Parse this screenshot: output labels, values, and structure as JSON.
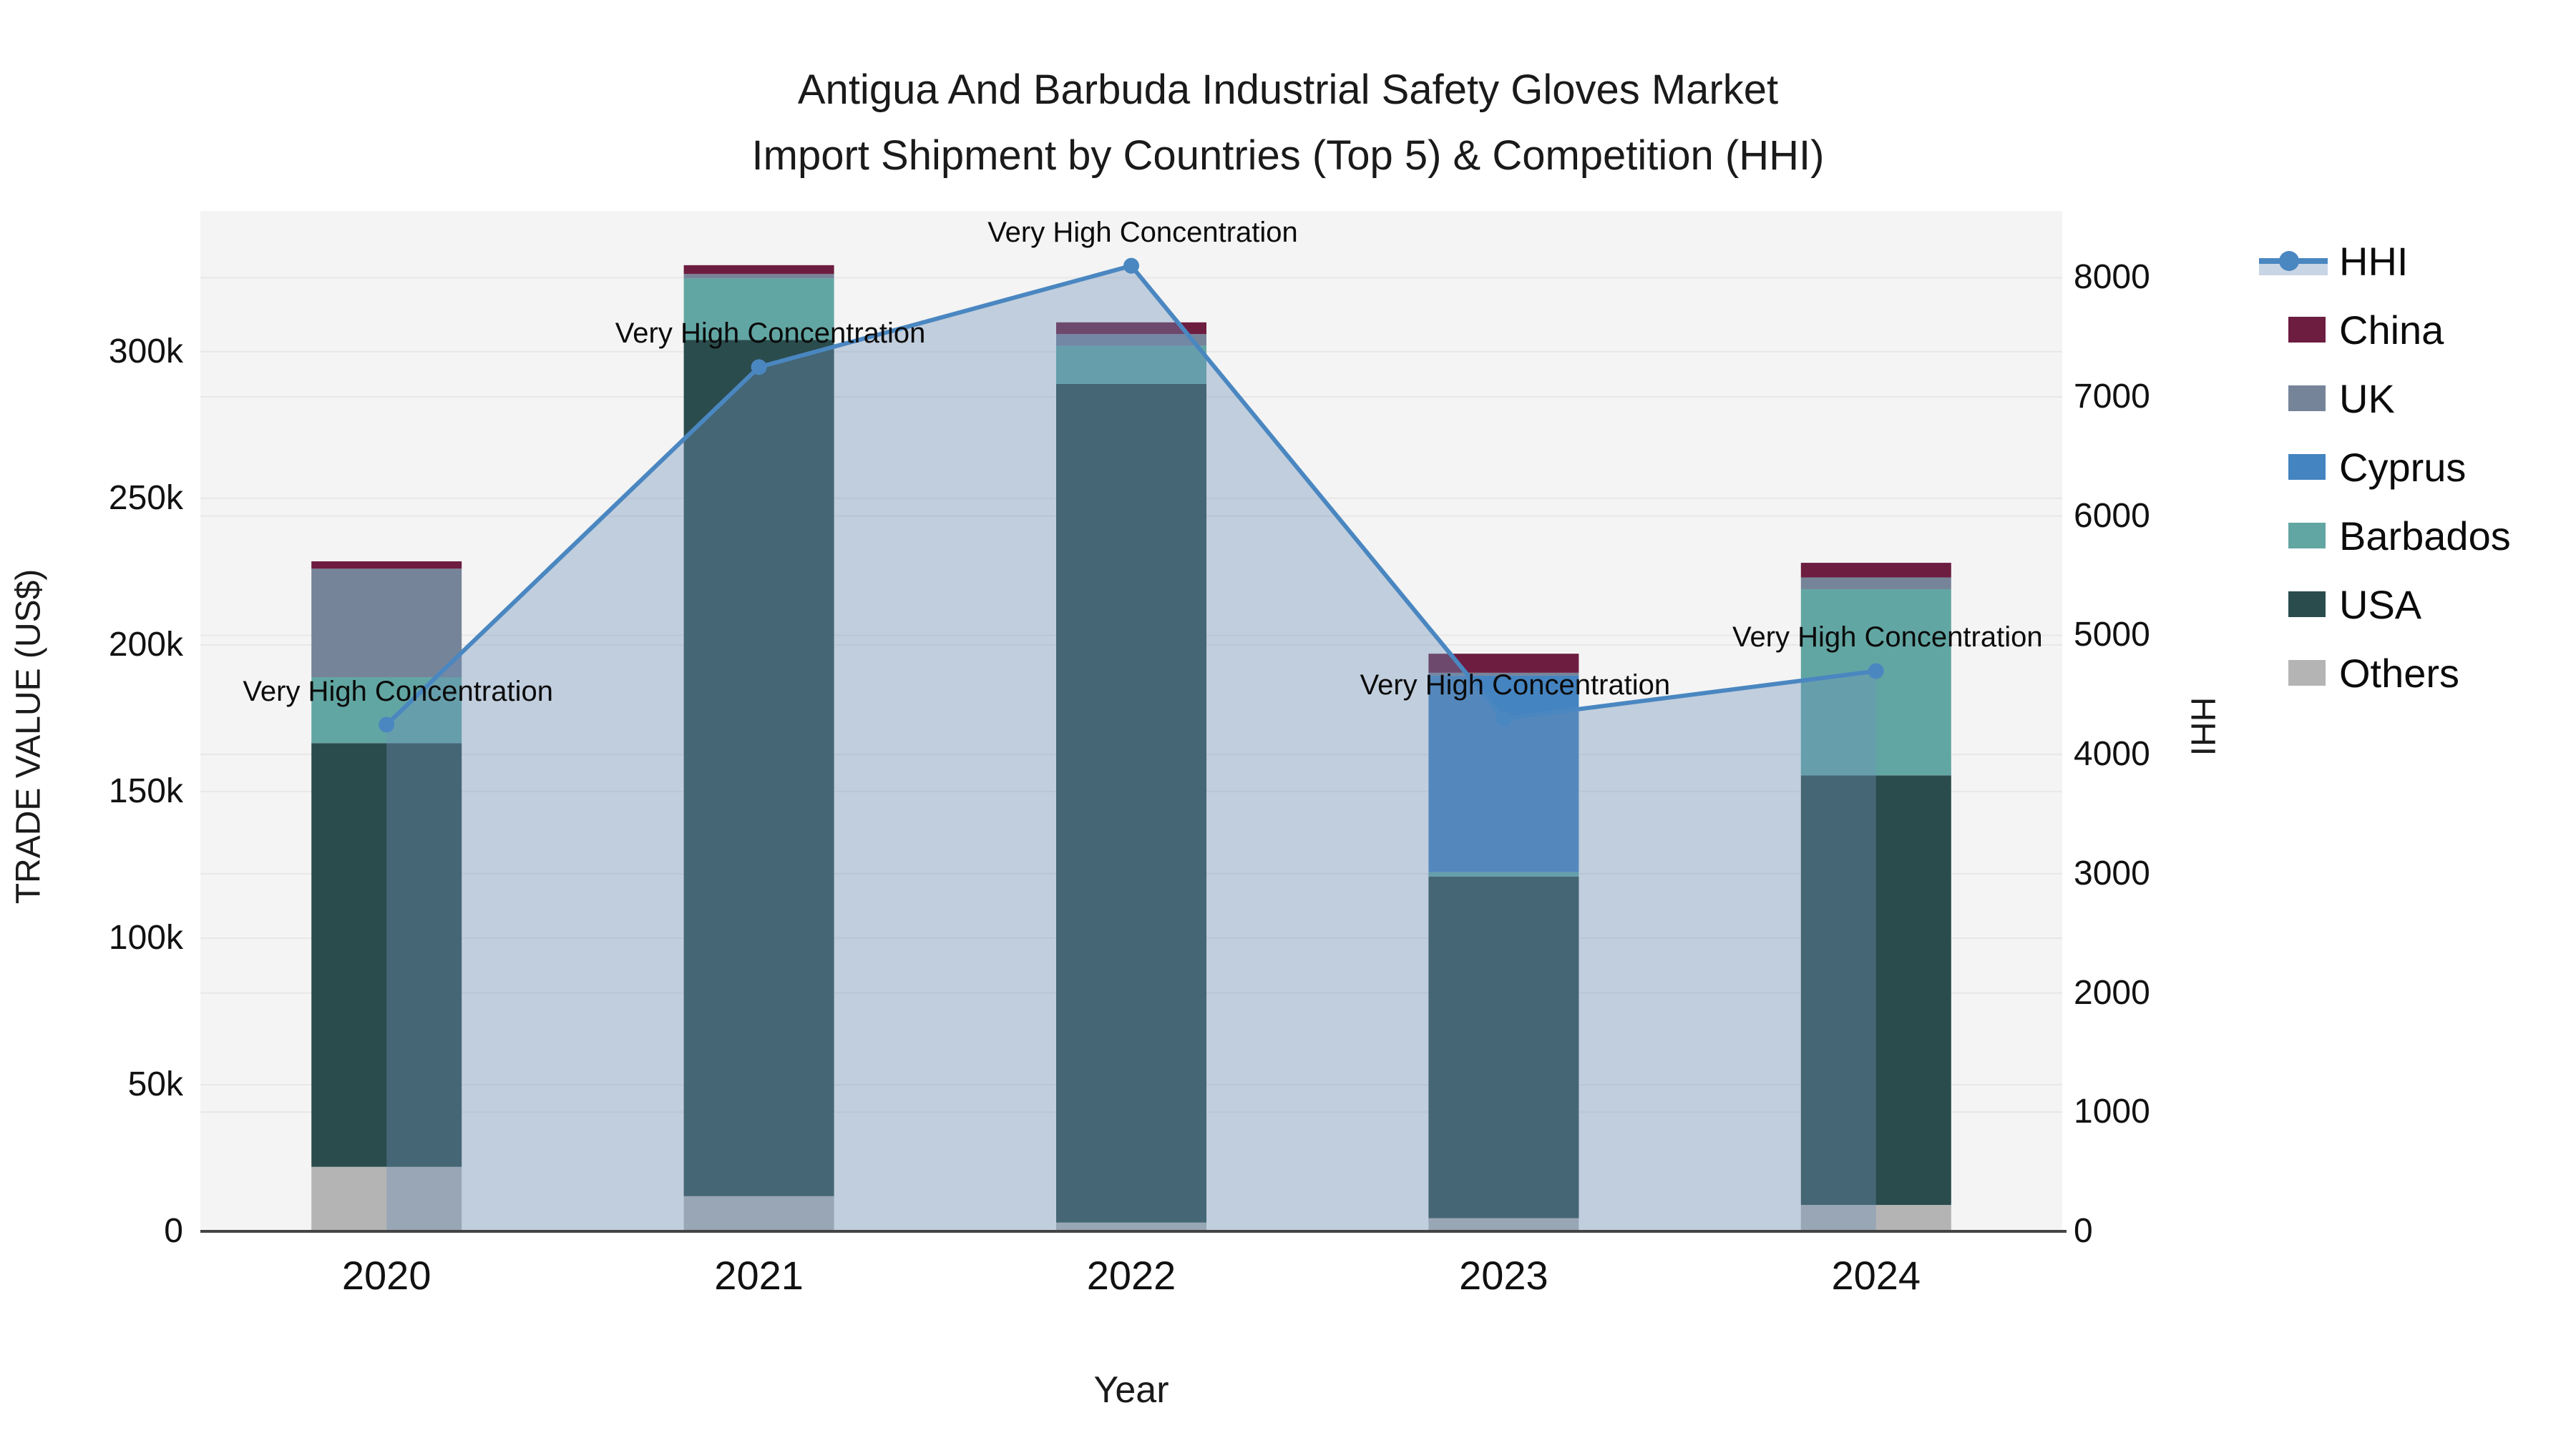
{
  "chart_data": {
    "type": "combo_stacked_bar_line",
    "title": "Antigua And Barbuda Industrial Safety Gloves Market",
    "subtitle": "Import Shipment by Countries (Top 5) & Competition (HHI)",
    "xlabel": "Year",
    "ylabel_left": "TRADE VALUE (US$)",
    "ylabel_right": "HHI",
    "categories": [
      "2020",
      "2021",
      "2022",
      "2023",
      "2024"
    ],
    "bar_series": [
      {
        "name": "Others",
        "color": "#b4b4b4",
        "values": [
          22000,
          12000,
          3000,
          4500,
          9000
        ]
      },
      {
        "name": "USA",
        "color": "#2b4c4d",
        "values": [
          144500,
          292000,
          286000,
          116500,
          146500
        ]
      },
      {
        "name": "Barbados",
        "color": "#62a6a3",
        "values": [
          22500,
          21000,
          13000,
          1500,
          63500
        ]
      },
      {
        "name": "Cyprus",
        "color": "#4484c0",
        "values": [
          0,
          0,
          0,
          67000,
          0
        ]
      },
      {
        "name": "UK",
        "color": "#768499",
        "values": [
          37000,
          1500,
          4000,
          1000,
          4000
        ]
      },
      {
        "name": "China",
        "color": "#6d1d40",
        "values": [
          2500,
          3000,
          4000,
          6500,
          5000
        ]
      }
    ],
    "line_series": {
      "name": "HHI",
      "color": "#4a87c1",
      "area_fill": "rgba(110,145,185,0.38)",
      "values": [
        4250,
        7250,
        8100,
        4300,
        4700
      ]
    },
    "annotations": [
      "Very High Concentration",
      "Very High Concentration",
      "Very High Concentration",
      "Very High Concentration",
      "Very High Concentration"
    ],
    "y_left": {
      "tick_labels": [
        "0",
        "50k",
        "100k",
        "150k",
        "200k",
        "250k",
        "300k"
      ],
      "tick_values": [
        0,
        50000,
        100000,
        150000,
        200000,
        250000,
        300000
      ],
      "range": [
        0,
        348000
      ]
    },
    "y_right": {
      "tick_labels": [
        "0",
        "1000",
        "2000",
        "3000",
        "4000",
        "5000",
        "6000",
        "7000",
        "8000"
      ],
      "tick_values": [
        0,
        1000,
        2000,
        3000,
        4000,
        5000,
        6000,
        7000,
        8000
      ],
      "range": [
        0,
        8560
      ]
    },
    "legend": [
      {
        "label": "HHI",
        "type": "line",
        "color": "#4a87c1"
      },
      {
        "label": "China",
        "type": "square",
        "color": "#6d1d40"
      },
      {
        "label": "UK",
        "type": "square",
        "color": "#768499"
      },
      {
        "label": "Cyprus",
        "type": "square",
        "color": "#4484c0"
      },
      {
        "label": "Barbados",
        "type": "square",
        "color": "#62a6a3"
      },
      {
        "label": "USA",
        "type": "square",
        "color": "#2b4c4d"
      },
      {
        "label": "Others",
        "type": "square",
        "color": "#b4b4b4"
      }
    ],
    "colors": {
      "plot_background": "#f4f4f4",
      "paper_background": "#ffffff",
      "grid": "#e7e7e7",
      "axis_line": "#444444"
    },
    "legend_position": "top-right",
    "grid": true
  }
}
